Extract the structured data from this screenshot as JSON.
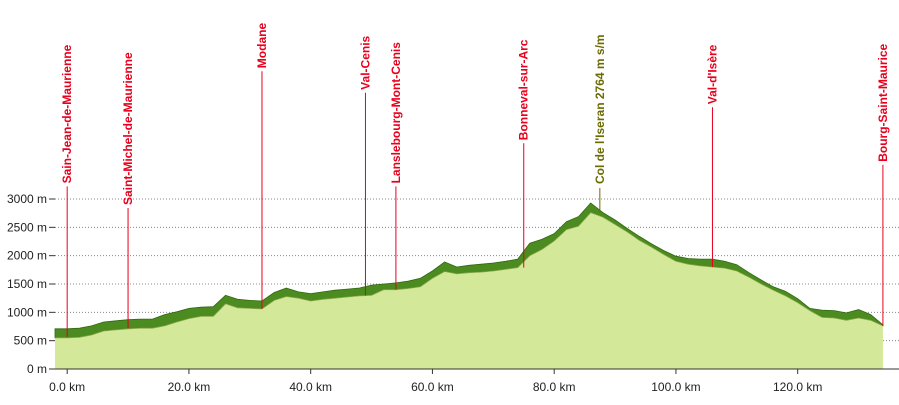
{
  "chart_data": {
    "type": "area",
    "title": "",
    "xlabel": "",
    "ylabel": "",
    "xlim": [
      -2,
      135
    ],
    "ylim": [
      0,
      3000
    ],
    "x_ticks": [
      0,
      20,
      40,
      60,
      80,
      100,
      120
    ],
    "x_tick_labels": [
      "0.0 km",
      "20.0 km",
      "40.0 km",
      "60.0 km",
      "80.0 km",
      "100.0 km",
      "120.0 km"
    ],
    "y_ticks": [
      0,
      500,
      1000,
      1500,
      2000,
      2500,
      3000
    ],
    "y_tick_labels": [
      "0 m",
      "500 m",
      "1000 m",
      "1500 m",
      "2000 m",
      "2500 m",
      "3000 m"
    ],
    "grid": true,
    "series": [
      {
        "role": "elevation",
        "x": [
          -2,
          0,
          2,
          4,
          6,
          8,
          10,
          12,
          14,
          16,
          18,
          20,
          22,
          24,
          26,
          28,
          30,
          32,
          34,
          36,
          38,
          40,
          42,
          44,
          46,
          48,
          50,
          52,
          54,
          56,
          58,
          60,
          62,
          64,
          66,
          68,
          70,
          72,
          74,
          76,
          78,
          80,
          82,
          84,
          86,
          88,
          90,
          92,
          94,
          96,
          98,
          100,
          102,
          104,
          106,
          108,
          110,
          112,
          114,
          116,
          118,
          120,
          122,
          124,
          126,
          128,
          130,
          132,
          134
        ],
        "y": [
          550,
          550,
          560,
          600,
          670,
          690,
          710,
          720,
          720,
          760,
          830,
          890,
          930,
          930,
          1150,
          1080,
          1070,
          1060,
          1210,
          1280,
          1250,
          1200,
          1230,
          1250,
          1270,
          1290,
          1300,
          1400,
          1400,
          1420,
          1450,
          1600,
          1720,
          1680,
          1700,
          1710,
          1730,
          1760,
          1790,
          2000,
          2110,
          2260,
          2460,
          2520,
          2760,
          2680,
          2550,
          2420,
          2270,
          2150,
          2020,
          1900,
          1850,
          1820,
          1800,
          1780,
          1730,
          1620,
          1500,
          1390,
          1290,
          1170,
          1030,
          910,
          900,
          860,
          900,
          860,
          760
        ]
      },
      {
        "role": "road-band",
        "x": [
          -2,
          0,
          2,
          4,
          6,
          8,
          10,
          12,
          14,
          16,
          18,
          20,
          22,
          24,
          26,
          28,
          30,
          32,
          34,
          36,
          38,
          40,
          42,
          44,
          46,
          48,
          50,
          52,
          54,
          56,
          58,
          60,
          62,
          64,
          66,
          68,
          70,
          72,
          74,
          76,
          78,
          80,
          82,
          84,
          86,
          88,
          90,
          92,
          94,
          96,
          98,
          100,
          102,
          104,
          106,
          108,
          110,
          112,
          114,
          116,
          118,
          120,
          122,
          124,
          126,
          128,
          130,
          132,
          134
        ],
        "y": [
          710,
          710,
          720,
          760,
          830,
          850,
          870,
          880,
          880,
          960,
          1010,
          1070,
          1090,
          1100,
          1300,
          1230,
          1210,
          1200,
          1350,
          1430,
          1360,
          1330,
          1360,
          1390,
          1410,
          1430,
          1480,
          1500,
          1520,
          1550,
          1600,
          1730,
          1890,
          1800,
          1830,
          1850,
          1870,
          1900,
          1940,
          2220,
          2290,
          2390,
          2600,
          2690,
          2930,
          2760,
          2630,
          2480,
          2340,
          2210,
          2090,
          1990,
          1950,
          1940,
          1940,
          1900,
          1840,
          1700,
          1570,
          1450,
          1370,
          1240,
          1070,
          1040,
          1030,
          990,
          1050,
          960,
          780
        ]
      }
    ],
    "annotations": [
      {
        "x": 0,
        "elev": 560,
        "label": "Sain-Jean-de-Maurienne",
        "type": "town"
      },
      {
        "x": 10,
        "elev": 720,
        "label": "Saint-Michel-de-Maurienne",
        "type": "town"
      },
      {
        "x": 32,
        "elev": 1060,
        "label": "Modane",
        "type": "town"
      },
      {
        "x": 49,
        "elev": 1300,
        "label": "Val-Cenis",
        "type": "town"
      },
      {
        "x": 54,
        "elev": 1400,
        "label": "Lanslebourg-Mont-Cenis",
        "type": "town"
      },
      {
        "x": 75,
        "elev": 1790,
        "label": "Bonneval-sur-Arc",
        "type": "town"
      },
      {
        "x": 87.5,
        "elev": 2764,
        "label": "Col de l'Iseran 2764  m s/m",
        "type": "pass"
      },
      {
        "x": 106,
        "elev": 1800,
        "label": "Val-d'Isère",
        "type": "town"
      },
      {
        "x": 134,
        "elev": 760,
        "label": "Bourg-Saint-Maurice",
        "type": "town"
      }
    ],
    "colors": {
      "fill": "#d4e89a",
      "band": "#4b8b1f",
      "band_stroke": "#2f6a10",
      "town": "#e8001c",
      "pass": "#6b6b00",
      "grid": "#888888",
      "axis_text": "#222222"
    }
  }
}
